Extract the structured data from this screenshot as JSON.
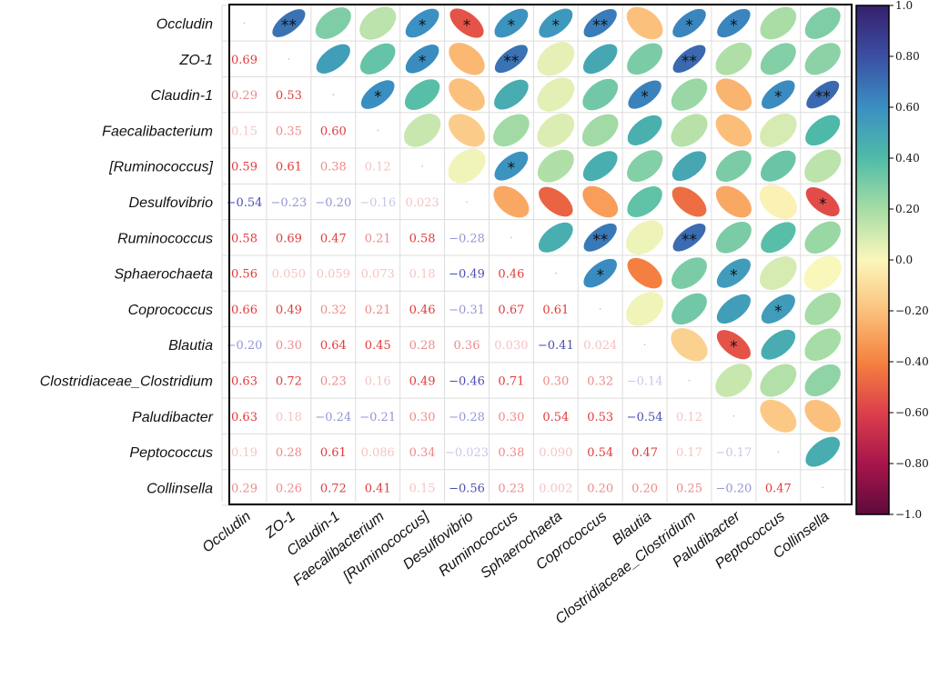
{
  "chart_data": {
    "type": "heatmap",
    "title": "",
    "variables": [
      "Occludin",
      "ZO-1",
      "Claudin-1",
      "Faecalibacterium",
      "[Ruminococcus]",
      "Desulfovibrio",
      "Ruminococcus",
      "Sphaerochaeta",
      "Coprococcus",
      "Blautia",
      "Clostridiaceae_Clostridium",
      "Paludibacter",
      "Peptococcus",
      "Collinsella"
    ],
    "lower_labels": [
      [],
      [
        "0.69"
      ],
      [
        "0.29",
        "0.53"
      ],
      [
        "0.15",
        "0.35",
        "0.60"
      ],
      [
        "0.59",
        "0.61",
        "0.38",
        "0.12"
      ],
      [
        "−0.54",
        "−0.23",
        "−0.20",
        "−0.16",
        "0.023"
      ],
      [
        "0.58",
        "0.69",
        "0.47",
        "0.21",
        "0.58",
        "−0.28"
      ],
      [
        "0.56",
        "0.050",
        "0.059",
        "0.073",
        "0.18",
        "−0.49",
        "0.46"
      ],
      [
        "0.66",
        "0.49",
        "0.32",
        "0.21",
        "0.46",
        "−0.31",
        "0.67",
        "0.61"
      ],
      [
        "−0.20",
        "0.30",
        "0.64",
        "0.45",
        "0.28",
        "0.36",
        "0.030",
        "−0.41",
        "0.024"
      ],
      [
        "0.63",
        "0.72",
        "0.23",
        "0.16",
        "0.49",
        "−0.46",
        "0.71",
        "0.30",
        "0.32",
        "−0.14"
      ],
      [
        "0.63",
        "0.18",
        "−0.24",
        "−0.21",
        "0.30",
        "−0.28",
        "0.30",
        "0.54",
        "0.53",
        "−0.54",
        "0.12"
      ],
      [
        "0.19",
        "0.28",
        "0.61",
        "0.086",
        "0.34",
        "−0.023",
        "0.38",
        "0.090",
        "0.54",
        "0.47",
        "0.17",
        "−0.17"
      ],
      [
        "0.29",
        "0.26",
        "0.72",
        "0.41",
        "0.15",
        "−0.56",
        "0.23",
        "0.002",
        "0.20",
        "0.20",
        "0.25",
        "−0.20",
        "0.47"
      ]
    ],
    "upper_stars": {
      "Occludin": {
        "ZO-1": "**",
        "Claudin-1": "",
        "Faecalibacterium": "",
        "[Ruminococcus]": "*",
        "Desulfovibrio": "*",
        "Ruminococcus": "*",
        "Sphaerochaeta": "*",
        "Coprococcus": "**",
        "Blautia": "",
        "Clostridiaceae_Clostridium": "*",
        "Paludibacter": "*",
        "Peptococcus": "",
        "Collinsella": ""
      },
      "ZO-1": {
        "[Ruminococcus]": "*",
        "Ruminococcus": "**",
        "Clostridiaceae_Clostridium": "**"
      },
      "Claudin-1": {
        "Faecalibacterium": "*",
        "Blautia": "*",
        "Peptococcus": "*",
        "Collinsella": "**"
      },
      "[Ruminococcus]": {
        "Ruminococcus": "*"
      },
      "Desulfovibrio": {
        "Collinsella": "*"
      },
      "Ruminococcus": {
        "Coprococcus": "**",
        "Clostridiaceae_Clostridium": "**"
      },
      "Sphaerochaeta": {
        "Coprococcus": "*",
        "Paludibacter": "*"
      },
      "Coprococcus": {
        "Peptococcus": "*"
      },
      "Blautia": {
        "Paludibacter": "*"
      }
    },
    "colorbar": {
      "range": [
        -1.0,
        1.0
      ],
      "tick_labels": [
        "1.0",
        "0.80",
        "0.60",
        "0.40",
        "0.20",
        "0.0",
        "−0.20",
        "−0.40",
        "−0.60",
        "−0.80",
        "−1.0"
      ],
      "tick_values": [
        1.0,
        0.8,
        0.6,
        0.4,
        0.2,
        0.0,
        -0.2,
        -0.4,
        -0.6,
        -0.8,
        -1.0
      ]
    },
    "colors": {
      "neg_strong": "#7a0c45",
      "neg_mid": "#d73f4c",
      "neg_light": "#f79a55",
      "neutral": "#fbf7bb",
      "pos_light": "#8ed1a4",
      "pos_mid": "#3a9fbe",
      "pos_strong": "#35206b",
      "grid": "#dddddd",
      "frame": "#000000"
    }
  }
}
